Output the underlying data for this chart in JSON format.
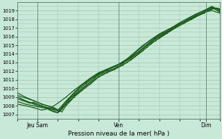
{
  "bg_color": "#c8e8d8",
  "plot_bg_color": "#c8e8d8",
  "grid_color": "#99bbaa",
  "line_color": "#1a5c1a",
  "ylim": [
    1006.5,
    1020.0
  ],
  "yticks": [
    1007,
    1008,
    1009,
    1010,
    1011,
    1012,
    1013,
    1014,
    1015,
    1016,
    1017,
    1018,
    1019
  ],
  "xtick_labels": [
    "Jeu Sam",
    "Ven",
    "Dim"
  ],
  "xtick_positions": [
    0.1,
    0.5,
    0.93
  ],
  "xlabel": "Pression niveau de la mer( hPa )",
  "lines": [
    [
      0.0,
      1009.0,
      0.02,
      1008.8,
      0.04,
      1008.5,
      0.06,
      1008.3,
      0.08,
      1008.4,
      0.1,
      1008.2,
      0.12,
      1008.0,
      0.14,
      1007.8,
      0.16,
      1007.5,
      0.18,
      1007.3,
      0.2,
      1007.2,
      0.22,
      1007.6,
      0.24,
      1008.2,
      0.26,
      1008.8,
      0.28,
      1009.3,
      0.3,
      1009.8,
      0.32,
      1010.2,
      0.34,
      1010.6,
      0.36,
      1011.0,
      0.38,
      1011.3,
      0.4,
      1011.6,
      0.42,
      1011.9,
      0.44,
      1012.2,
      0.46,
      1012.4,
      0.48,
      1012.6,
      0.5,
      1012.8,
      0.52,
      1013.1,
      0.54,
      1013.4,
      0.56,
      1013.8,
      0.58,
      1014.2,
      0.6,
      1014.6,
      0.62,
      1015.0,
      0.64,
      1015.3,
      0.66,
      1015.6,
      0.68,
      1015.9,
      0.7,
      1016.2,
      0.72,
      1016.4,
      0.74,
      1016.6,
      0.76,
      1016.9,
      0.78,
      1017.1,
      0.8,
      1017.4,
      0.82,
      1017.6,
      0.84,
      1017.9,
      0.86,
      1018.1,
      0.88,
      1018.3,
      0.9,
      1018.5,
      0.92,
      1018.7,
      0.94,
      1019.0,
      0.96,
      1019.2,
      0.98,
      1019.3,
      1.0,
      1019.1
    ],
    [
      0.0,
      1008.5,
      0.04,
      1008.2,
      0.08,
      1008.0,
      0.12,
      1007.8,
      0.16,
      1007.6,
      0.2,
      1007.2,
      0.24,
      1008.5,
      0.28,
      1009.2,
      0.32,
      1010.0,
      0.36,
      1010.8,
      0.4,
      1011.5,
      0.44,
      1012.0,
      0.48,
      1012.3,
      0.52,
      1012.9,
      0.56,
      1013.5,
      0.6,
      1014.2,
      0.64,
      1015.0,
      0.68,
      1015.7,
      0.72,
      1016.3,
      0.76,
      1016.8,
      0.8,
      1017.4,
      0.84,
      1017.9,
      0.88,
      1018.3,
      0.92,
      1018.8,
      0.96,
      1019.3,
      1.0,
      1018.9
    ],
    [
      0.0,
      1008.8,
      0.04,
      1008.5,
      0.08,
      1008.3,
      0.12,
      1008.0,
      0.16,
      1007.7,
      0.2,
      1007.4,
      0.22,
      1007.8,
      0.26,
      1008.6,
      0.3,
      1009.5,
      0.34,
      1010.3,
      0.38,
      1011.0,
      0.42,
      1011.6,
      0.46,
      1012.1,
      0.5,
      1012.5,
      0.54,
      1013.0,
      0.58,
      1013.7,
      0.62,
      1014.4,
      0.66,
      1015.2,
      0.7,
      1015.8,
      0.74,
      1016.4,
      0.78,
      1017.0,
      0.82,
      1017.5,
      0.86,
      1018.0,
      0.9,
      1018.5,
      0.94,
      1019.0,
      0.98,
      1019.3,
      1.0,
      1019.2
    ],
    [
      0.0,
      1009.2,
      0.04,
      1008.9,
      0.08,
      1008.6,
      0.12,
      1008.2,
      0.16,
      1007.9,
      0.2,
      1007.5,
      0.22,
      1007.3,
      0.24,
      1008.0,
      0.28,
      1009.0,
      0.32,
      1009.8,
      0.36,
      1010.5,
      0.4,
      1011.3,
      0.44,
      1011.8,
      0.48,
      1012.2,
      0.52,
      1012.7,
      0.56,
      1013.3,
      0.6,
      1014.0,
      0.64,
      1014.8,
      0.68,
      1015.5,
      0.72,
      1016.2,
      0.76,
      1016.8,
      0.8,
      1017.4,
      0.84,
      1018.0,
      0.88,
      1018.5,
      0.92,
      1019.0,
      0.96,
      1019.4,
      1.0,
      1018.8
    ],
    [
      0.0,
      1009.5,
      0.04,
      1009.0,
      0.08,
      1008.6,
      0.12,
      1008.2,
      0.15,
      1008.0,
      0.18,
      1007.8,
      0.21,
      1007.4,
      0.24,
      1008.3,
      0.28,
      1009.5,
      0.32,
      1010.4,
      0.36,
      1011.0,
      0.4,
      1011.7,
      0.44,
      1012.1,
      0.48,
      1012.5,
      0.52,
      1013.0,
      0.56,
      1013.6,
      0.6,
      1014.3,
      0.64,
      1015.1,
      0.68,
      1015.8,
      0.72,
      1016.5,
      0.76,
      1017.0,
      0.8,
      1017.6,
      0.84,
      1018.1,
      0.88,
      1018.6,
      0.92,
      1019.0,
      0.96,
      1019.5,
      1.0,
      1019.0
    ],
    [
      0.0,
      1008.2,
      0.04,
      1008.0,
      0.08,
      1007.8,
      0.12,
      1007.5,
      0.16,
      1007.7,
      0.2,
      1008.3,
      0.24,
      1009.0,
      0.28,
      1009.8,
      0.32,
      1010.5,
      0.36,
      1011.2,
      0.4,
      1011.8,
      0.44,
      1012.2,
      0.48,
      1012.5,
      0.52,
      1013.0,
      0.56,
      1013.6,
      0.6,
      1014.2,
      0.64,
      1015.0,
      0.68,
      1015.7,
      0.72,
      1016.3,
      0.76,
      1016.9,
      0.8,
      1017.4,
      0.84,
      1017.9,
      0.88,
      1018.4,
      0.92,
      1018.8,
      0.96,
      1019.0,
      1.0,
      1018.7
    ],
    [
      0.0,
      1009.0,
      0.05,
      1008.5,
      0.1,
      1008.0,
      0.15,
      1007.8,
      0.2,
      1007.5,
      0.25,
      1008.8,
      0.3,
      1010.0,
      0.35,
      1011.0,
      0.4,
      1011.8,
      0.45,
      1012.3,
      0.5,
      1012.8,
      0.55,
      1013.5,
      0.6,
      1014.5,
      0.65,
      1015.5,
      0.7,
      1016.3,
      0.75,
      1016.9,
      0.8,
      1017.5,
      0.85,
      1018.0,
      0.9,
      1018.6,
      0.95,
      1019.3,
      1.0,
      1019.2
    ]
  ]
}
